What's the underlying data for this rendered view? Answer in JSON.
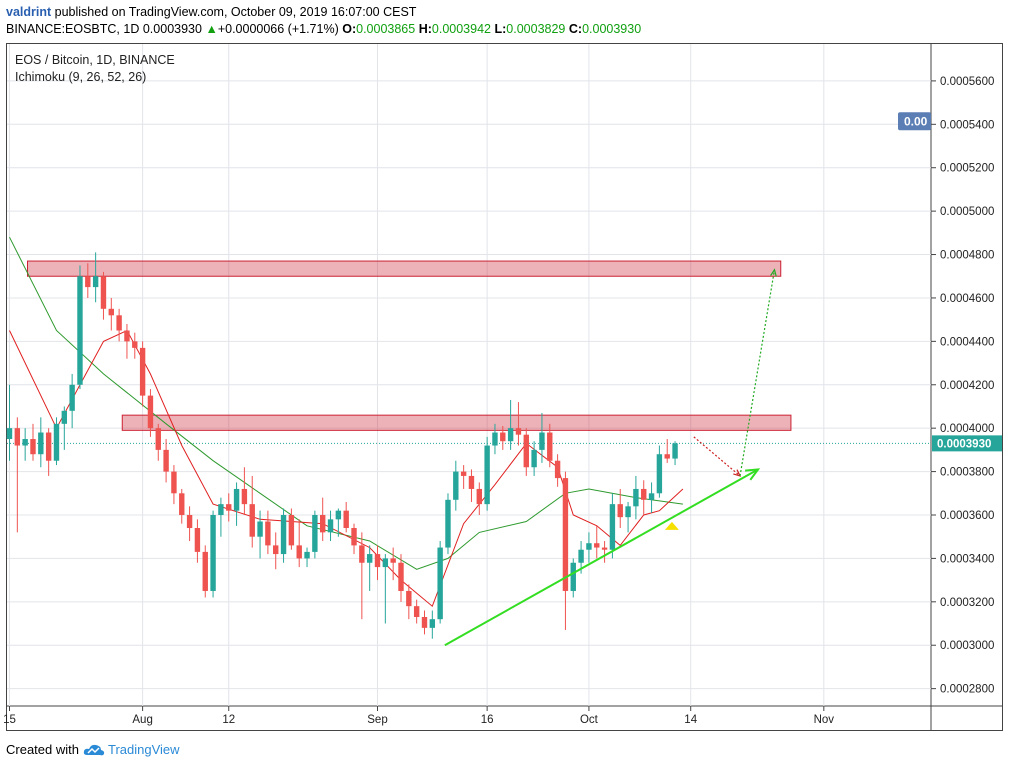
{
  "header": {
    "author": "valdrint",
    "published_text": " published on TradingView.com, October 09, 2019 16:07:00 CEST",
    "symbol": "BINANCE:EOSBTC, 1D",
    "last": "0.0003930",
    "change": "+0.0000066 (+1.71%)",
    "o_label": "O:",
    "o_value": "0.0003865",
    "h_label": "H:",
    "h_value": "0.0003942",
    "l_label": "L:",
    "l_value": "0.0003829",
    "c_label": "C:",
    "c_value": "0.0003930"
  },
  "legend": {
    "pair": "EOS / Bitcoin, 1D, BINANCE",
    "indicator": "Ichimoku (9, 26, 52, 26)"
  },
  "price_badge": "0.0003930",
  "partial_badge": "0.00",
  "footer": {
    "created_with": "Created with",
    "brand": "TradingView"
  },
  "colors": {
    "up": "#26a69a",
    "down": "#ef5350",
    "zone": "#cc2233",
    "arrow": "#33dd22",
    "tenkan": "#e02020",
    "kijun": "#2e9a2e",
    "badge": "#26a69a"
  },
  "chart_data": {
    "type": "candlestick",
    "title": "EOS / Bitcoin, 1D, BINANCE",
    "x_tick_labels": [
      "15",
      "Aug",
      "12",
      "Sep",
      "16",
      "Oct",
      "14",
      "Nov"
    ],
    "x_ticks_day_index": [
      0,
      17,
      28,
      47,
      61,
      74,
      87,
      104
    ],
    "y_tick_labels": [
      "0.0005600",
      "0.0005400",
      "0.0005200",
      "0.0005000",
      "0.0004800",
      "0.0004600",
      "0.0004400",
      "0.0004200",
      "0.0004000",
      "0.0003800",
      "0.0003600",
      "0.0003400",
      "0.0003200",
      "0.0003000",
      "0.0002800"
    ],
    "ylim": [
      0.000272,
      0.000577
    ],
    "last_price": 0.000393,
    "candles": [
      [
        0.000395,
        0.00042,
        0.000385,
        0.0004
      ],
      [
        0.0004,
        0.000405,
        0.000352,
        0.000392
      ],
      [
        0.000392,
        0.0004,
        0.000385,
        0.000395
      ],
      [
        0.000395,
        0.000402,
        0.000385,
        0.000388
      ],
      [
        0.000388,
        0.000405,
        0.000382,
        0.000398
      ],
      [
        0.000398,
        0.0004,
        0.000378,
        0.000385
      ],
      [
        0.000385,
        0.000405,
        0.000383,
        0.000402
      ],
      [
        0.000402,
        0.00041,
        0.00039,
        0.000408
      ],
      [
        0.000408,
        0.000425,
        0.0004,
        0.00042
      ],
      [
        0.00042,
        0.000475,
        0.000418,
        0.00047
      ],
      [
        0.00047,
        0.000476,
        0.00046,
        0.000465
      ],
      [
        0.000465,
        0.000481,
        0.000458,
        0.00047
      ],
      [
        0.00047,
        0.000472,
        0.00045,
        0.000455
      ],
      [
        0.000455,
        0.00046,
        0.000445,
        0.000452
      ],
      [
        0.000452,
        0.000455,
        0.00044,
        0.000445
      ],
      [
        0.000445,
        0.000448,
        0.000432,
        0.00044
      ],
      [
        0.00044,
        0.000444,
        0.000432,
        0.000437
      ],
      [
        0.000437,
        0.00044,
        0.00041,
        0.000415
      ],
      [
        0.000415,
        0.000418,
        0.000396,
        0.0004
      ],
      [
        0.0004,
        0.000402,
        0.000385,
        0.00039
      ],
      [
        0.00039,
        0.000395,
        0.000375,
        0.00038
      ],
      [
        0.00038,
        0.000383,
        0.000365,
        0.00037
      ],
      [
        0.00037,
        0.000372,
        0.000356,
        0.00036
      ],
      [
        0.00036,
        0.000364,
        0.000348,
        0.000354
      ],
      [
        0.000354,
        0.000358,
        0.000338,
        0.000343
      ],
      [
        0.000343,
        0.000346,
        0.000322,
        0.000325
      ],
      [
        0.000325,
        0.000362,
        0.000322,
        0.00036
      ],
      [
        0.00036,
        0.000368,
        0.00035,
        0.000365
      ],
      [
        0.000365,
        0.00037,
        0.000357,
        0.000362
      ],
      [
        0.000362,
        0.000375,
        0.000355,
        0.000372
      ],
      [
        0.000372,
        0.000382,
        0.00036,
        0.000365
      ],
      [
        0.000365,
        0.000378,
        0.000345,
        0.00035
      ],
      [
        0.00035,
        0.000362,
        0.00034,
        0.000357
      ],
      [
        0.000357,
        0.000362,
        0.000342,
        0.000346
      ],
      [
        0.000346,
        0.000352,
        0.000335,
        0.000342
      ],
      [
        0.000342,
        0.000363,
        0.000338,
        0.00036
      ],
      [
        0.00036,
        0.000363,
        0.000344,
        0.000346
      ],
      [
        0.000346,
        0.000358,
        0.000336,
        0.00034
      ],
      [
        0.00034,
        0.000345,
        0.000336,
        0.000343
      ],
      [
        0.000343,
        0.000362,
        0.00034,
        0.00036
      ],
      [
        0.00036,
        0.000368,
        0.000348,
        0.000352
      ],
      [
        0.000352,
        0.000362,
        0.000348,
        0.000358
      ],
      [
        0.000358,
        0.000363,
        0.00035,
        0.000362
      ],
      [
        0.000362,
        0.000366,
        0.000352,
        0.000354
      ],
      [
        0.000354,
        0.000356,
        0.000342,
        0.000346
      ],
      [
        0.000346,
        0.000352,
        0.000312,
        0.000338
      ],
      [
        0.000338,
        0.000346,
        0.000325,
        0.000342
      ],
      [
        0.000342,
        0.000346,
        0.00033,
        0.000336
      ],
      [
        0.000336,
        0.000342,
        0.00031,
        0.00034
      ],
      [
        0.00034,
        0.000345,
        0.00033,
        0.000338
      ],
      [
        0.000338,
        0.000342,
        0.00032,
        0.000325
      ],
      [
        0.000325,
        0.000328,
        0.000312,
        0.000318
      ],
      [
        0.000318,
        0.000321,
        0.00031,
        0.000313
      ],
      [
        0.000313,
        0.000316,
        0.000305,
        0.000308
      ],
      [
        0.000308,
        0.000316,
        0.000303,
        0.000312
      ],
      [
        0.000312,
        0.000348,
        0.00031,
        0.000345
      ],
      [
        0.000345,
        0.00037,
        0.000342,
        0.000367
      ],
      [
        0.000367,
        0.000385,
        0.000362,
        0.00038
      ],
      [
        0.00038,
        0.000383,
        0.000372,
        0.000378
      ],
      [
        0.000378,
        0.000381,
        0.000366,
        0.000372
      ],
      [
        0.000372,
        0.000375,
        0.00036,
        0.000365
      ],
      [
        0.000365,
        0.000396,
        0.000362,
        0.000392
      ],
      [
        0.000392,
        0.000402,
        0.000388,
        0.000398
      ],
      [
        0.000398,
        0.000401,
        0.00039,
        0.000394
      ],
      [
        0.000394,
        0.000413,
        0.00039,
        0.0004
      ],
      [
        0.0004,
        0.000412,
        0.000392,
        0.000397
      ],
      [
        0.000397,
        0.0004,
        0.000378,
        0.000382
      ],
      [
        0.000382,
        0.000394,
        0.000378,
        0.00039
      ],
      [
        0.00039,
        0.000407,
        0.000384,
        0.000398
      ],
      [
        0.000398,
        0.000402,
        0.000382,
        0.000385
      ],
      [
        0.000385,
        0.000388,
        0.000373,
        0.000377
      ],
      [
        0.000377,
        0.00038,
        0.000307,
        0.000325
      ],
      [
        0.000325,
        0.00034,
        0.000322,
        0.000338
      ],
      [
        0.000338,
        0.000348,
        0.000333,
        0.000344
      ],
      [
        0.000344,
        0.000352,
        0.000338,
        0.000347
      ],
      [
        0.000347,
        0.000355,
        0.00034,
        0.000345
      ],
      [
        0.000345,
        0.000348,
        0.000338,
        0.000344
      ],
      [
        0.000344,
        0.00037,
        0.00034,
        0.000365
      ],
      [
        0.000365,
        0.000372,
        0.000354,
        0.000359
      ],
      [
        0.000359,
        0.000366,
        0.000352,
        0.000364
      ],
      [
        0.000364,
        0.000378,
        0.000358,
        0.000372
      ],
      [
        0.000372,
        0.000376,
        0.00036,
        0.000367
      ],
      [
        0.000367,
        0.000375,
        0.000361,
        0.00037
      ],
      [
        0.00037,
        0.000392,
        0.000368,
        0.000388
      ],
      [
        0.000388,
        0.000395,
        0.000384,
        0.000386
      ],
      [
        0.000386,
        0.000394,
        0.000383,
        0.000393
      ]
    ],
    "tenkan": [
      [
        0,
        0.000445
      ],
      [
        6,
        0.0004
      ],
      [
        9,
        0.00042
      ],
      [
        12,
        0.00044
      ],
      [
        15,
        0.000445
      ],
      [
        18,
        0.000425
      ],
      [
        22,
        0.000392
      ],
      [
        26,
        0.000365
      ],
      [
        32,
        0.000358
      ],
      [
        40,
        0.000356
      ],
      [
        46,
        0.000345
      ],
      [
        50,
        0.00033
      ],
      [
        54,
        0.000318
      ],
      [
        58,
        0.000356
      ],
      [
        62,
        0.000374
      ],
      [
        66,
        0.000393
      ],
      [
        70,
        0.000382
      ],
      [
        72,
        0.00036
      ],
      [
        75,
        0.000355
      ],
      [
        78,
        0.000346
      ],
      [
        81,
        0.00036
      ],
      [
        83,
        0.000362
      ],
      [
        86,
        0.000372
      ]
    ],
    "kijun": [
      [
        0,
        0.000488
      ],
      [
        6,
        0.000445
      ],
      [
        12,
        0.000425
      ],
      [
        20,
        0.000402
      ],
      [
        26,
        0.000385
      ],
      [
        32,
        0.00037
      ],
      [
        38,
        0.000355
      ],
      [
        46,
        0.000348
      ],
      [
        52,
        0.000335
      ],
      [
        56,
        0.00034
      ],
      [
        60,
        0.000352
      ],
      [
        66,
        0.000357
      ],
      [
        71,
        0.00037
      ],
      [
        74,
        0.000372
      ],
      [
        80,
        0.000368
      ],
      [
        86,
        0.000365
      ]
    ],
    "resistance_zones": [
      {
        "day_start": 2.3,
        "day_end": 98.5,
        "price_low": 0.00047,
        "price_high": 0.000477
      },
      {
        "day_start": 14.4,
        "day_end": 99.8,
        "price_low": 0.000399,
        "price_high": 0.000406
      }
    ],
    "support_trendline": {
      "from": [
        55.6,
        0.0003
      ],
      "to": [
        95.6,
        0.000381
      ]
    },
    "projection_down": {
      "from": [
        87.4,
        0.000396
      ],
      "to": [
        93.3,
        0.000378
      ]
    },
    "projection_up": {
      "from": [
        93.3,
        0.000378
      ],
      "to": [
        97.7,
        0.000473
      ]
    },
    "marker_triangle": {
      "day": 84.6,
      "price": 0.000355
    }
  }
}
